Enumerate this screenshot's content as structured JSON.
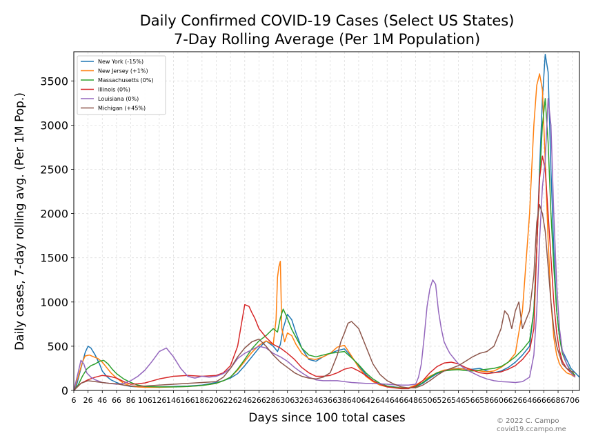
{
  "chart_data": {
    "type": "line",
    "title": "Daily Confirmed COVID-19 Cases (Select US States)",
    "subtitle": "7-Day Rolling Average (Per 1M Population)",
    "xlabel": "Days since 100 total cases",
    "ylabel": "Daily cases, 7-day rolling avg. (Per 1M Pop.)",
    "xlim": [
      6,
      716
    ],
    "ylim": [
      0,
      3830
    ],
    "x_ticks": [
      6,
      26,
      46,
      66,
      86,
      106,
      126,
      146,
      166,
      186,
      206,
      226,
      246,
      266,
      286,
      306,
      326,
      346,
      366,
      386,
      406,
      426,
      446,
      466,
      486,
      506,
      526,
      546,
      566,
      586,
      606,
      626,
      646,
      666,
      686,
      706
    ],
    "x_tick_labels": [
      "6",
      "26",
      "46",
      "66",
      "86",
      "106",
      "126",
      "146",
      "166",
      "186",
      "206",
      "226",
      "246",
      "266",
      "286",
      "306",
      "326",
      "346",
      "366",
      "386",
      "406",
      "426",
      "446",
      "466",
      "486",
      "506",
      "526",
      "546",
      "566",
      "586",
      "606",
      "626",
      "646",
      "666",
      "686",
      "706"
    ],
    "y_ticks": [
      0,
      500,
      1000,
      1500,
      2000,
      2500,
      3000,
      3500
    ],
    "y_tick_labels": [
      "0",
      "500",
      "1000",
      "1500",
      "2000",
      "2500",
      "3000",
      "3500"
    ],
    "grid": true,
    "legend_position": "top-left",
    "series": [
      {
        "name": "New York (-15%)",
        "color": "#1f77b4",
        "x": [
          6,
          10,
          16,
          22,
          26,
          30,
          36,
          42,
          46,
          52,
          58,
          66,
          76,
          86,
          96,
          106,
          126,
          146,
          166,
          186,
          206,
          216,
          226,
          236,
          246,
          256,
          266,
          276,
          286,
          292,
          296,
          300,
          306,
          312,
          318,
          326,
          336,
          346,
          356,
          366,
          376,
          386,
          396,
          406,
          416,
          426,
          436,
          446,
          456,
          466,
          476,
          486,
          496,
          506,
          516,
          526,
          536,
          546,
          556,
          566,
          576,
          586,
          596,
          606,
          616,
          626,
          636,
          646,
          652,
          656,
          660,
          664,
          668,
          672,
          676,
          680,
          684,
          688,
          692,
          698,
          704,
          710,
          716
        ],
        "y": [
          0,
          60,
          250,
          430,
          500,
          480,
          400,
          300,
          220,
          160,
          120,
          90,
          60,
          45,
          40,
          40,
          40,
          45,
          50,
          60,
          90,
          110,
          140,
          190,
          280,
          380,
          480,
          560,
          500,
          440,
          520,
          700,
          860,
          800,
          650,
          480,
          350,
          330,
          380,
          420,
          450,
          470,
          380,
          280,
          180,
          110,
          70,
          50,
          40,
          30,
          25,
          40,
          80,
          140,
          190,
          220,
          240,
          250,
          240,
          240,
          250,
          220,
          200,
          220,
          260,
          320,
          400,
          500,
          900,
          1600,
          2500,
          3300,
          3800,
          3600,
          2500,
          1600,
          900,
          600,
          450,
          350,
          250,
          200,
          150
        ]
      },
      {
        "name": "New Jersey (+1%)",
        "color": "#ff7f0e",
        "x": [
          6,
          12,
          18,
          22,
          28,
          34,
          40,
          46,
          52,
          58,
          66,
          76,
          86,
          96,
          106,
          126,
          146,
          166,
          186,
          206,
          216,
          226,
          236,
          246,
          256,
          266,
          276,
          286,
          290,
          292,
          294,
          296,
          298,
          302,
          306,
          312,
          318,
          326,
          336,
          346,
          356,
          366,
          376,
          386,
          396,
          406,
          416,
          426,
          436,
          446,
          456,
          466,
          476,
          486,
          496,
          506,
          516,
          526,
          536,
          546,
          556,
          566,
          576,
          586,
          596,
          606,
          616,
          626,
          636,
          646,
          652,
          656,
          660,
          664,
          668,
          672,
          676,
          680,
          684,
          688,
          692,
          698,
          704,
          710
        ],
        "y": [
          0,
          150,
          320,
          390,
          400,
          380,
          360,
          320,
          260,
          200,
          140,
          80,
          50,
          40,
          35,
          35,
          40,
          45,
          55,
          80,
          110,
          150,
          230,
          330,
          430,
          510,
          560,
          520,
          800,
          1280,
          1400,
          1460,
          700,
          550,
          650,
          620,
          520,
          420,
          360,
          350,
          380,
          420,
          490,
          510,
          390,
          260,
          160,
          100,
          60,
          40,
          35,
          30,
          30,
          60,
          110,
          160,
          200,
          230,
          240,
          245,
          240,
          230,
          220,
          210,
          220,
          260,
          320,
          420,
          900,
          2000,
          3000,
          3450,
          3580,
          3400,
          2600,
          1700,
          1000,
          600,
          400,
          300,
          250,
          200,
          180,
          150
        ]
      },
      {
        "name": "Massachusetts (0%)",
        "color": "#2ca02c",
        "x": [
          6,
          12,
          18,
          24,
          30,
          36,
          42,
          48,
          54,
          60,
          66,
          76,
          86,
          96,
          106,
          126,
          146,
          166,
          186,
          206,
          216,
          226,
          236,
          246,
          256,
          266,
          276,
          286,
          292,
          296,
          300,
          304,
          308,
          312,
          318,
          326,
          336,
          346,
          356,
          366,
          376,
          386,
          396,
          406,
          416,
          426,
          436,
          446,
          456,
          466,
          476,
          486,
          496,
          506,
          516,
          526,
          536,
          546,
          556,
          566,
          576,
          586,
          596,
          606,
          616,
          626,
          636,
          646,
          652,
          656,
          660,
          664,
          668,
          672,
          676,
          680,
          684,
          688,
          692,
          698,
          704,
          710
        ],
        "y": [
          0,
          60,
          160,
          240,
          280,
          300,
          330,
          340,
          300,
          240,
          190,
          130,
          90,
          60,
          45,
          40,
          40,
          45,
          55,
          80,
          110,
          150,
          240,
          350,
          470,
          560,
          620,
          700,
          660,
          820,
          920,
          850,
          770,
          690,
          600,
          480,
          400,
          380,
          400,
          420,
          430,
          440,
          370,
          290,
          200,
          130,
          80,
          50,
          35,
          25,
          25,
          40,
          90,
          150,
          200,
          220,
          230,
          235,
          225,
          220,
          230,
          240,
          250,
          270,
          320,
          380,
          460,
          560,
          900,
          1600,
          2400,
          3000,
          3300,
          2800,
          2000,
          1400,
          900,
          600,
          420,
          300,
          220,
          170
        ]
      },
      {
        "name": "Illinois (0%)",
        "color": "#d62728",
        "x": [
          6,
          16,
          26,
          36,
          46,
          56,
          66,
          76,
          86,
          96,
          106,
          126,
          146,
          166,
          186,
          206,
          216,
          226,
          236,
          242,
          246,
          252,
          256,
          260,
          266,
          276,
          286,
          296,
          306,
          316,
          326,
          336,
          346,
          356,
          366,
          376,
          386,
          396,
          406,
          416,
          426,
          436,
          446,
          456,
          466,
          476,
          486,
          496,
          506,
          516,
          526,
          536,
          546,
          556,
          566,
          576,
          586,
          596,
          606,
          616,
          626,
          636,
          646,
          652,
          656,
          660,
          664,
          668,
          672,
          676,
          680,
          684,
          688,
          692,
          698,
          704,
          710
        ],
        "y": [
          0,
          80,
          120,
          150,
          170,
          160,
          140,
          100,
          70,
          75,
          85,
          130,
          160,
          170,
          160,
          170,
          200,
          280,
          500,
          780,
          970,
          950,
          880,
          820,
          700,
          600,
          520,
          480,
          420,
          350,
          260,
          200,
          160,
          160,
          170,
          200,
          240,
          260,
          220,
          170,
          110,
          70,
          40,
          30,
          20,
          20,
          50,
          110,
          200,
          270,
          310,
          320,
          300,
          260,
          230,
          200,
          190,
          200,
          210,
          240,
          280,
          350,
          450,
          700,
          1600,
          2400,
          2650,
          2500,
          2000,
          1500,
          1000,
          650,
          450,
          330,
          250,
          200,
          160
        ]
      },
      {
        "name": "Louisiana (0%)",
        "color": "#9467bd",
        "x": [
          6,
          12,
          16,
          20,
          24,
          30,
          36,
          46,
          56,
          66,
          76,
          86,
          96,
          106,
          116,
          126,
          136,
          146,
          156,
          166,
          176,
          186,
          196,
          206,
          216,
          226,
          236,
          246,
          256,
          266,
          276,
          286,
          296,
          306,
          316,
          326,
          336,
          346,
          356,
          366,
          376,
          386,
          396,
          406,
          416,
          426,
          436,
          446,
          456,
          466,
          476,
          486,
          490,
          494,
          498,
          502,
          506,
          510,
          514,
          518,
          522,
          526,
          530,
          534,
          538,
          546,
          556,
          566,
          576,
          586,
          596,
          606,
          616,
          626,
          636,
          646,
          652,
          656,
          660,
          664,
          668,
          672,
          676,
          680,
          684,
          688,
          692,
          698,
          704,
          710
        ],
        "y": [
          0,
          200,
          340,
          300,
          200,
          150,
          120,
          90,
          80,
          70,
          80,
          110,
          160,
          230,
          330,
          440,
          480,
          380,
          250,
          160,
          140,
          160,
          150,
          160,
          190,
          250,
          360,
          420,
          460,
          500,
          480,
          420,
          380,
          330,
          260,
          200,
          150,
          120,
          110,
          110,
          110,
          100,
          90,
          85,
          80,
          80,
          75,
          70,
          65,
          60,
          60,
          70,
          150,
          300,
          600,
          950,
          1150,
          1250,
          1200,
          900,
          700,
          550,
          480,
          420,
          380,
          300,
          240,
          200,
          160,
          130,
          110,
          100,
          95,
          90,
          100,
          150,
          400,
          900,
          1700,
          2300,
          2600,
          3300,
          3000,
          2000,
          1200,
          700,
          450,
          300,
          200,
          150
        ]
      },
      {
        "name": "Michigan (+45%)",
        "color": "#8c564b",
        "x": [
          6,
          16,
          26,
          36,
          46,
          56,
          66,
          76,
          86,
          96,
          106,
          126,
          146,
          166,
          186,
          206,
          216,
          226,
          236,
          246,
          256,
          266,
          276,
          286,
          296,
          306,
          316,
          326,
          336,
          346,
          356,
          366,
          376,
          381,
          386,
          391,
          396,
          406,
          416,
          426,
          436,
          446,
          456,
          466,
          476,
          486,
          496,
          506,
          516,
          526,
          536,
          546,
          556,
          566,
          576,
          586,
          596,
          606,
          611,
          616,
          621,
          626,
          631,
          636,
          646,
          652,
          656,
          660,
          664,
          668,
          672,
          676,
          680,
          684,
          688,
          692,
          698,
          704,
          710
        ],
        "y": [
          0,
          80,
          110,
          100,
          90,
          80,
          75,
          60,
          50,
          50,
          50,
          60,
          70,
          80,
          90,
          100,
          150,
          250,
          380,
          480,
          550,
          580,
          500,
          400,
          320,
          260,
          200,
          160,
          140,
          130,
          150,
          200,
          400,
          550,
          650,
          760,
          780,
          700,
          500,
          300,
          180,
          110,
          70,
          40,
          30,
          30,
          60,
          110,
          170,
          220,
          250,
          280,
          330,
          380,
          420,
          440,
          500,
          700,
          900,
          850,
          700,
          900,
          1000,
          700,
          900,
          1300,
          1900,
          2100,
          2000,
          1800,
          1400,
          1000,
          700,
          500,
          400,
          300,
          250,
          220,
          200
        ]
      }
    ],
    "credit": [
      "© 2022 C. Campo",
      "covid19.ccampo.me"
    ]
  }
}
